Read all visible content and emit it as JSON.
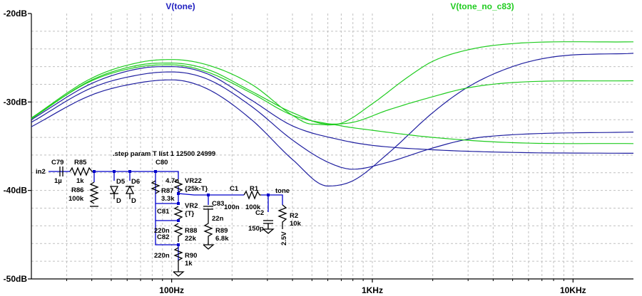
{
  "chart_data": {
    "type": "line",
    "title": "",
    "xlabel": "",
    "ylabel": "",
    "x_scale": "log",
    "xlim": [
      20,
      20000
    ],
    "ylim": [
      -50,
      -20
    ],
    "x_ticks": [
      {
        "value": 100,
        "label": "100Hz"
      },
      {
        "value": 1000,
        "label": "1KHz"
      },
      {
        "value": 10000,
        "label": "10KHz"
      }
    ],
    "y_ticks": [
      {
        "value": -20,
        "label": "-20dB"
      },
      {
        "value": -30,
        "label": "-30dB"
      },
      {
        "value": -40,
        "label": "-40dB"
      },
      {
        "value": -50,
        "label": "-50dB"
      }
    ],
    "grid": true,
    "legend_placement": "top",
    "colors": {
      "tone": "#2020a0",
      "tone_no_c83": "#20cc20",
      "grid": "#c0c0c0"
    },
    "series": [
      {
        "name": "V(tone)",
        "step": 1,
        "points": [
          [
            20,
            -32.8
          ],
          [
            40,
            -29.2
          ],
          [
            70,
            -27.8
          ],
          [
            100,
            -27.5
          ],
          [
            150,
            -28.5
          ],
          [
            250,
            -32
          ],
          [
            400,
            -36.5
          ],
          [
            600,
            -39.5
          ],
          [
            800,
            -38.9
          ],
          [
            1200,
            -35.8
          ],
          [
            2000,
            -31.2
          ],
          [
            3000,
            -28.3
          ],
          [
            5000,
            -26
          ],
          [
            8000,
            -24.9
          ],
          [
            20000,
            -24.5
          ]
        ]
      },
      {
        "name": "V(tone)",
        "step": 2,
        "points": [
          [
            20,
            -32.3
          ],
          [
            40,
            -28.4
          ],
          [
            70,
            -26.9
          ],
          [
            100,
            -26.6
          ],
          [
            150,
            -27.4
          ],
          [
            250,
            -30.5
          ],
          [
            400,
            -34.3
          ],
          [
            600,
            -36.8
          ],
          [
            800,
            -37.6
          ],
          [
            1200,
            -36.8
          ],
          [
            2000,
            -35.2
          ],
          [
            3000,
            -34.2
          ],
          [
            5000,
            -33.7
          ],
          [
            20000,
            -33.4
          ]
        ]
      },
      {
        "name": "V(tone)",
        "step": 3,
        "points": [
          [
            20,
            -32
          ],
          [
            40,
            -27.9
          ],
          [
            70,
            -26.2
          ],
          [
            100,
            -26
          ],
          [
            150,
            -26.8
          ],
          [
            250,
            -29.8
          ],
          [
            400,
            -32.7
          ],
          [
            700,
            -34.3
          ],
          [
            1000,
            -34.9
          ],
          [
            2000,
            -35.4
          ],
          [
            5000,
            -35.7
          ],
          [
            20000,
            -35.8
          ]
        ]
      },
      {
        "name": "V(tone_no_c83)",
        "step": 1,
        "points": [
          [
            20,
            -31.8
          ],
          [
            40,
            -27.3
          ],
          [
            70,
            -25.5
          ],
          [
            100,
            -25.2
          ],
          [
            150,
            -25.8
          ],
          [
            250,
            -28
          ],
          [
            400,
            -31.5
          ],
          [
            500,
            -32.5
          ],
          [
            700,
            -32.4
          ],
          [
            1000,
            -30.2
          ],
          [
            1500,
            -27.2
          ],
          [
            2000,
            -25.4
          ],
          [
            3000,
            -24.1
          ],
          [
            5000,
            -23.4
          ],
          [
            20000,
            -23.2
          ]
        ]
      },
      {
        "name": "V(tone_no_c83)",
        "step": 2,
        "points": [
          [
            20,
            -31.9
          ],
          [
            40,
            -27.5
          ],
          [
            70,
            -25.8
          ],
          [
            100,
            -25.6
          ],
          [
            150,
            -26.3
          ],
          [
            250,
            -28.8
          ],
          [
            400,
            -31.2
          ],
          [
            600,
            -32.5
          ],
          [
            800,
            -32.3
          ],
          [
            1200,
            -30.9
          ],
          [
            2000,
            -29.4
          ],
          [
            3000,
            -28.4
          ],
          [
            5000,
            -27.8
          ],
          [
            20000,
            -27.6
          ]
        ]
      },
      {
        "name": "V(tone_no_c83)",
        "step": 3,
        "points": [
          [
            20,
            -31.8
          ],
          [
            40,
            -27.6
          ],
          [
            70,
            -26
          ],
          [
            100,
            -25.8
          ],
          [
            150,
            -26.6
          ],
          [
            250,
            -29
          ],
          [
            400,
            -31.5
          ],
          [
            700,
            -32.7
          ],
          [
            1000,
            -33.2
          ],
          [
            2000,
            -34
          ],
          [
            5000,
            -34.6
          ],
          [
            20000,
            -34.7
          ]
        ]
      }
    ]
  },
  "schematic": {
    "directive": ".step param T list 1 12500 24999",
    "labels": {
      "in2": "in2",
      "c79_name": "C79",
      "c79_val": "1µ",
      "r85_name": "R85",
      "r85_val": "1k",
      "r86_name": "R86",
      "r86_val": "100k",
      "d5": "D5",
      "d6": "D6",
      "c80_name": "C80",
      "c80_val": "4.7n",
      "vr22_name": "VR22",
      "vr22_val": "{25k-T}",
      "r87_name": "R87",
      "r87_val": "3.3k",
      "c81_name": "C81",
      "c81_val": "220n",
      "vr2_name": "VR2",
      "vr2_val": "{T}",
      "c83_name": "C83",
      "c83_val": "22n",
      "c1_name": "C1",
      "c1_val": "100n",
      "r1_name": "R1",
      "r1_val": "100k",
      "tone": "tone",
      "c2_name": "C2",
      "c2_val": "150p",
      "r2_name": "R2",
      "r2_val": "10k",
      "v25": "2.5V",
      "r88_name": "R88",
      "r88_val": "22k",
      "c82_name": "C82",
      "c82_val": "220n",
      "r89_name": "R89",
      "r89_val": "6.8k",
      "r90_name": "R90",
      "r90_val": "1k",
      "d_model": "D"
    }
  }
}
